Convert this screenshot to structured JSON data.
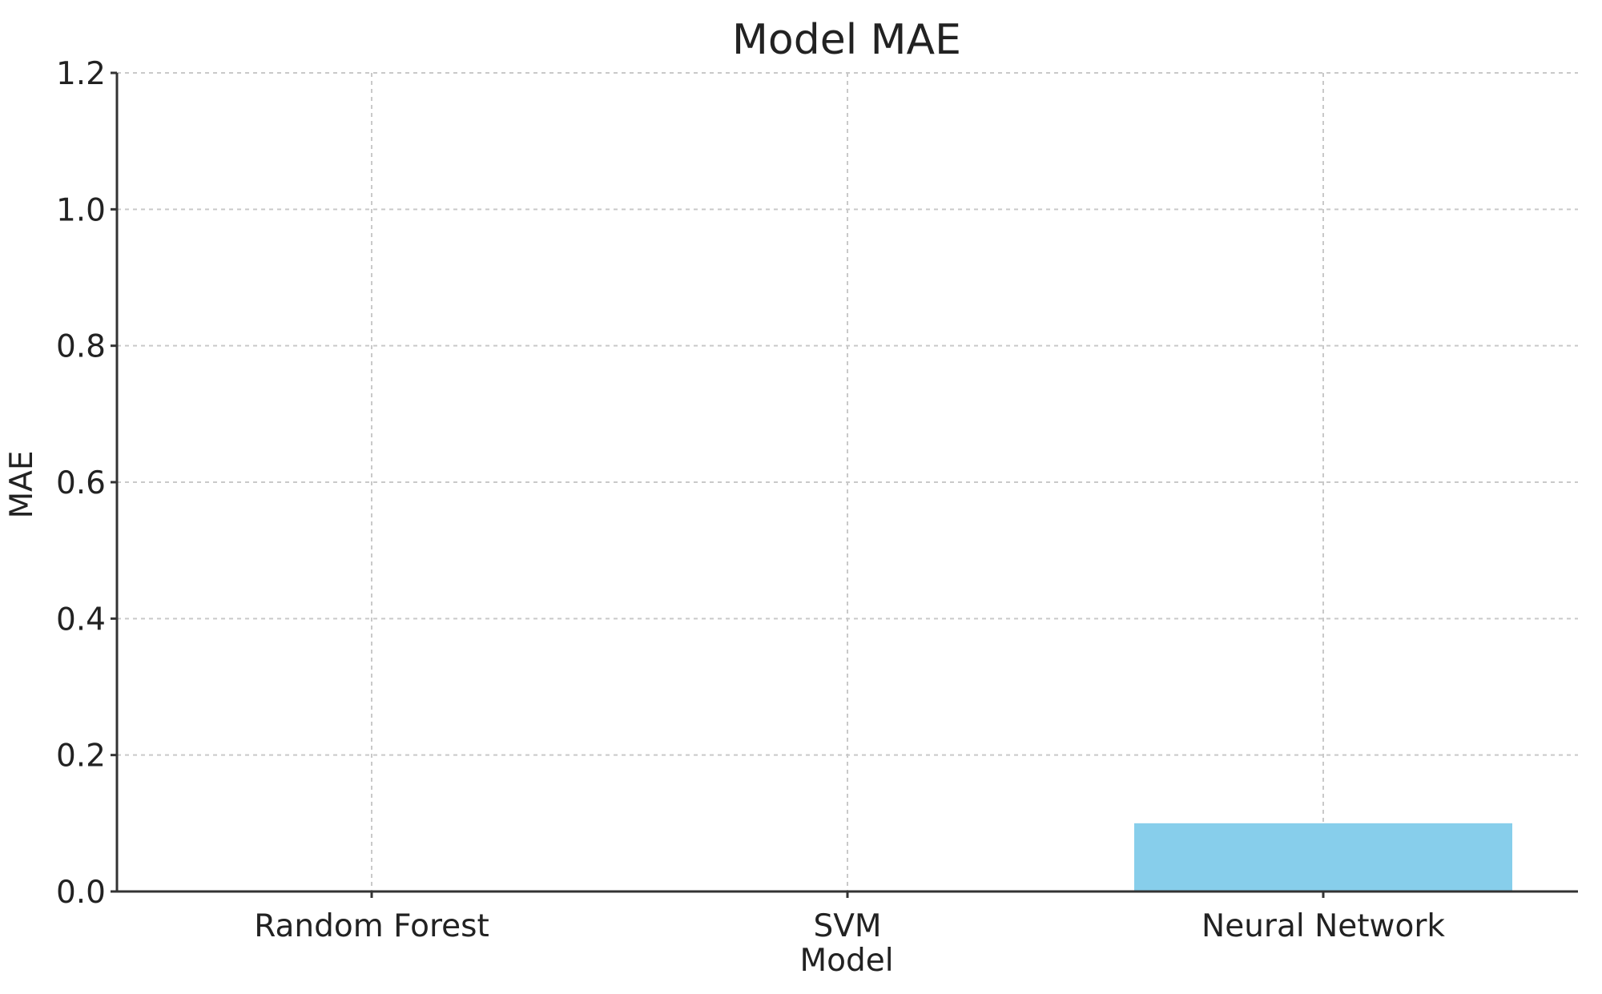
{
  "chart_data": {
    "type": "bar",
    "title": "Model MAE",
    "xlabel": "Model",
    "ylabel": "MAE",
    "categories": [
      "Random Forest",
      "SVM",
      "Neural Network"
    ],
    "values": [
      0.0,
      0.0,
      0.1
    ],
    "ylim": [
      0,
      1.2
    ],
    "yticks": [
      "0.0",
      "0.2",
      "0.4",
      "0.6",
      "0.8",
      "1.0",
      "1.2"
    ],
    "grid": true,
    "bar_color": "#87ceeb"
  }
}
